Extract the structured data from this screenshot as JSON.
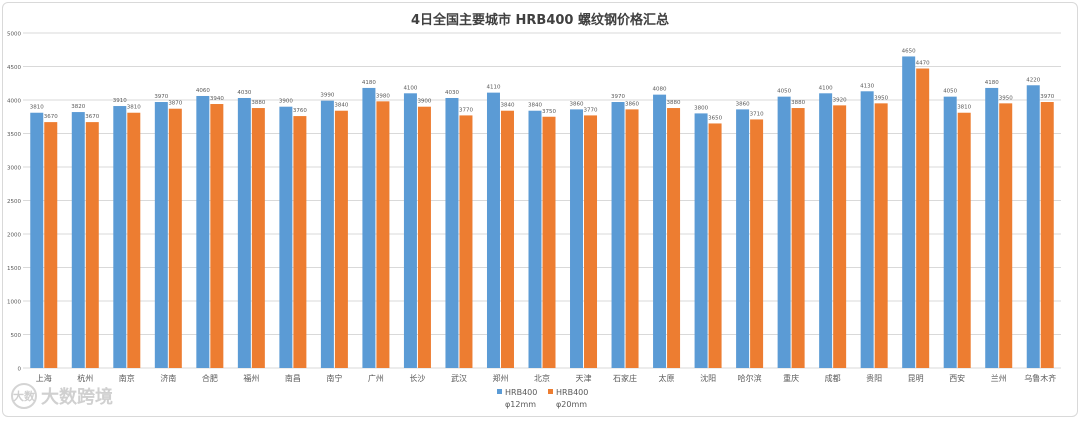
{
  "colors": {
    "series1": "#5b9bd5",
    "series2": "#ed7d31",
    "grid": "#d9d9d9",
    "text": "#595959"
  },
  "watermark": {
    "text": "大数跨境",
    "icon_name": "brand-logo-icon",
    "icon_text": "大数"
  },
  "chart_data": {
    "type": "bar",
    "title": "4日全国主要城市 HRB400 螺纹钢价格汇总",
    "xlabel": "",
    "ylabel": "",
    "ylim": [
      0,
      5000
    ],
    "yticks": [
      "0",
      "500",
      "1000",
      "1500",
      "2000",
      "2500",
      "3000",
      "3500",
      "4000",
      "4500",
      "5000"
    ],
    "grid": true,
    "legend_position": "bottom",
    "categories": [
      "上海",
      "杭州",
      "南京",
      "济南",
      "合肥",
      "福州",
      "南昌",
      "南宁",
      "广州",
      "长沙",
      "武汉",
      "郑州",
      "北京",
      "天津",
      "石家庄",
      "太原",
      "沈阳",
      "哈尔滨",
      "重庆",
      "成都",
      "贵阳",
      "昆明",
      "西安",
      "兰州",
      "乌鲁木齐"
    ],
    "series": [
      {
        "name": "HRB400 φ12mm",
        "legend_line1": "HRB400",
        "legend_line2": "φ12mm",
        "values": [
          3810,
          3820,
          3910,
          3970,
          4060,
          4030,
          3900,
          3990,
          4180,
          4100,
          4030,
          4110,
          3840,
          3860,
          3970,
          4080,
          3800,
          3860,
          4050,
          4100,
          4130,
          4650,
          4050,
          4180,
          4220
        ]
      },
      {
        "name": "HRB400 φ20mm",
        "legend_line1": "HRB400",
        "legend_line2": "φ20mm",
        "values": [
          3670,
          3670,
          3810,
          3870,
          3940,
          3880,
          3760,
          3840,
          3980,
          3900,
          3770,
          3840,
          3750,
          3770,
          3860,
          3880,
          3650,
          3710,
          3880,
          3920,
          3950,
          4470,
          3810,
          3950,
          3970
        ]
      }
    ]
  }
}
